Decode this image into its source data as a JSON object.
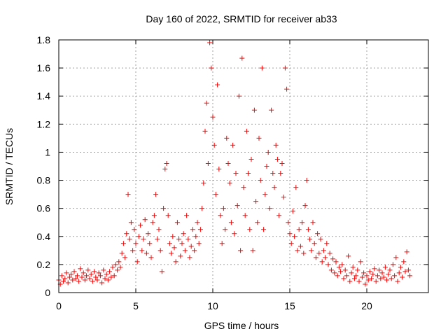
{
  "chart_data": {
    "type": "scatter",
    "title": "Day 160 of 2022, SRMTID for receiver ab33",
    "xlabel": "GPS time / hours",
    "ylabel": "SRMTID / TECUs",
    "xlim": [
      0,
      24
    ],
    "ylim": [
      0,
      1.8
    ],
    "xticks": [
      0,
      5,
      10,
      15,
      20
    ],
    "yticks": [
      0,
      0.2,
      0.4,
      0.6,
      0.8,
      1,
      1.2,
      1.4,
      1.6,
      1.8
    ],
    "ytick_labels": [
      "0",
      "0.2",
      "0.4",
      "0.6",
      "0.8",
      "1",
      "1.2",
      "1.4",
      "1.6",
      "1.8"
    ],
    "grid": true,
    "marker": "+",
    "color": "#ff0000",
    "series": [
      {
        "name": "SRMTID",
        "points": [
          [
            0.0,
            0.09
          ],
          [
            0.1,
            0.06
          ],
          [
            0.2,
            0.12
          ],
          [
            0.3,
            0.08
          ],
          [
            0.4,
            0.1
          ],
          [
            0.5,
            0.14
          ],
          [
            0.6,
            0.07
          ],
          [
            0.7,
            0.11
          ],
          [
            0.8,
            0.13
          ],
          [
            0.9,
            0.09
          ],
          [
            1.0,
            0.15
          ],
          [
            1.1,
            0.1
          ],
          [
            1.2,
            0.12
          ],
          [
            1.3,
            0.08
          ],
          [
            1.4,
            0.17
          ],
          [
            1.5,
            0.11
          ],
          [
            1.6,
            0.14
          ],
          [
            1.7,
            0.09
          ],
          [
            1.8,
            0.12
          ],
          [
            1.9,
            0.16
          ],
          [
            2.0,
            0.1
          ],
          [
            2.1,
            0.13
          ],
          [
            2.2,
            0.08
          ],
          [
            2.3,
            0.15
          ],
          [
            2.4,
            0.11
          ],
          [
            2.5,
            0.09
          ],
          [
            2.6,
            0.14
          ],
          [
            2.7,
            0.12
          ],
          [
            2.8,
            0.07
          ],
          [
            2.9,
            0.16
          ],
          [
            3.0,
            0.1
          ],
          [
            3.1,
            0.13
          ],
          [
            3.2,
            0.09
          ],
          [
            3.3,
            0.15
          ],
          [
            3.4,
            0.11
          ],
          [
            3.5,
            0.18
          ],
          [
            3.6,
            0.12
          ],
          [
            3.7,
            0.2
          ],
          [
            3.8,
            0.16
          ],
          [
            3.9,
            0.22
          ],
          [
            4.0,
            0.18
          ],
          [
            4.1,
            0.28
          ],
          [
            4.2,
            0.35
          ],
          [
            4.3,
            0.25
          ],
          [
            4.4,
            0.42
          ],
          [
            4.5,
            0.7
          ],
          [
            4.6,
            0.38
          ],
          [
            4.7,
            0.5
          ],
          [
            4.8,
            0.3
          ],
          [
            4.9,
            0.45
          ],
          [
            5.0,
            0.35
          ],
          [
            5.1,
            0.22
          ],
          [
            5.2,
            0.4
          ],
          [
            5.3,
            0.48
          ],
          [
            5.4,
            0.3
          ],
          [
            5.5,
            0.38
          ],
          [
            5.6,
            0.52
          ],
          [
            5.7,
            0.28
          ],
          [
            5.8,
            0.42
          ],
          [
            5.9,
            0.35
          ],
          [
            6.0,
            0.25
          ],
          [
            6.1,
            0.5
          ],
          [
            6.2,
            0.55
          ],
          [
            6.3,
            0.7
          ],
          [
            6.4,
            0.38
          ],
          [
            6.5,
            0.45
          ],
          [
            6.6,
            0.3
          ],
          [
            6.7,
            0.15
          ],
          [
            6.8,
            0.6
          ],
          [
            6.9,
            0.88
          ],
          [
            7.0,
            0.92
          ],
          [
            7.1,
            0.55
          ],
          [
            7.2,
            0.35
          ],
          [
            7.3,
            0.28
          ],
          [
            7.4,
            0.4
          ],
          [
            7.5,
            0.32
          ],
          [
            7.6,
            0.22
          ],
          [
            7.7,
            0.5
          ],
          [
            7.8,
            0.38
          ],
          [
            7.9,
            0.26
          ],
          [
            8.0,
            0.35
          ],
          [
            8.1,
            0.42
          ],
          [
            8.2,
            0.3
          ],
          [
            8.3,
            0.55
          ],
          [
            8.4,
            0.38
          ],
          [
            8.5,
            0.25
          ],
          [
            8.6,
            0.33
          ],
          [
            8.7,
            0.45
          ],
          [
            8.8,
            0.3
          ],
          [
            8.9,
            0.4
          ],
          [
            9.0,
            0.5
          ],
          [
            9.1,
            0.35
          ],
          [
            9.2,
            0.45
          ],
          [
            9.3,
            0.6
          ],
          [
            9.4,
            0.78
          ],
          [
            9.5,
            1.15
          ],
          [
            9.6,
            1.35
          ],
          [
            9.7,
            0.92
          ],
          [
            9.8,
            1.78
          ],
          [
            9.9,
            1.6
          ],
          [
            10.0,
            1.25
          ],
          [
            10.1,
            1.05
          ],
          [
            10.2,
            0.7
          ],
          [
            10.3,
            1.48
          ],
          [
            10.4,
            0.88
          ],
          [
            10.5,
            0.55
          ],
          [
            10.6,
            0.35
          ],
          [
            10.7,
            0.6
          ],
          [
            10.8,
            0.45
          ],
          [
            10.9,
            1.1
          ],
          [
            11.0,
            0.92
          ],
          [
            11.1,
            0.78
          ],
          [
            11.2,
            0.5
          ],
          [
            11.3,
            1.05
          ],
          [
            11.4,
            0.42
          ],
          [
            11.5,
            0.85
          ],
          [
            11.6,
            0.62
          ],
          [
            11.7,
            1.4
          ],
          [
            11.8,
            0.3
          ],
          [
            11.9,
            1.67
          ],
          [
            12.0,
            0.75
          ],
          [
            12.1,
            0.55
          ],
          [
            12.2,
            1.15
          ],
          [
            12.3,
            0.85
          ],
          [
            12.4,
            0.45
          ],
          [
            12.5,
            0.95
          ],
          [
            12.6,
            0.3
          ],
          [
            12.7,
            1.3
          ],
          [
            12.8,
            0.65
          ],
          [
            12.9,
            0.5
          ],
          [
            13.0,
            1.1
          ],
          [
            13.1,
            0.8
          ],
          [
            13.2,
            1.6
          ],
          [
            13.3,
            0.45
          ],
          [
            13.4,
            0.7
          ],
          [
            13.5,
            0.9
          ],
          [
            13.6,
            1.0
          ],
          [
            13.7,
            0.6
          ],
          [
            13.8,
            1.3
          ],
          [
            13.9,
            0.85
          ],
          [
            14.0,
            0.75
          ],
          [
            14.1,
            1.05
          ],
          [
            14.2,
            0.95
          ],
          [
            14.3,
            0.55
          ],
          [
            14.4,
            0.85
          ],
          [
            14.5,
            0.92
          ],
          [
            14.6,
            0.68
          ],
          [
            14.7,
            1.6
          ],
          [
            14.8,
            1.45
          ],
          [
            14.9,
            0.5
          ],
          [
            15.0,
            0.42
          ],
          [
            15.1,
            0.35
          ],
          [
            15.2,
            0.58
          ],
          [
            15.3,
            0.4
          ],
          [
            15.4,
            0.75
          ],
          [
            15.5,
            0.3
          ],
          [
            15.6,
            0.45
          ],
          [
            15.7,
            0.33
          ],
          [
            15.8,
            0.5
          ],
          [
            15.9,
            0.28
          ],
          [
            16.0,
            0.62
          ],
          [
            16.1,
            0.8
          ],
          [
            16.2,
            0.45
          ],
          [
            16.3,
            0.38
          ],
          [
            16.4,
            0.3
          ],
          [
            16.5,
            0.5
          ],
          [
            16.6,
            0.35
          ],
          [
            16.7,
            0.25
          ],
          [
            16.8,
            0.42
          ],
          [
            16.9,
            0.28
          ],
          [
            17.0,
            0.38
          ],
          [
            17.1,
            0.22
          ],
          [
            17.2,
            0.3
          ],
          [
            17.3,
            0.25
          ],
          [
            17.4,
            0.35
          ],
          [
            17.5,
            0.2
          ],
          [
            17.6,
            0.28
          ],
          [
            17.7,
            0.16
          ],
          [
            17.8,
            0.24
          ],
          [
            17.9,
            0.14
          ],
          [
            18.0,
            0.22
          ],
          [
            18.1,
            0.12
          ],
          [
            18.2,
            0.18
          ],
          [
            18.3,
            0.15
          ],
          [
            18.4,
            0.2
          ],
          [
            18.5,
            0.1
          ],
          [
            18.6,
            0.16
          ],
          [
            18.7,
            0.12
          ],
          [
            18.8,
            0.26
          ],
          [
            18.9,
            0.08
          ],
          [
            19.0,
            0.14
          ],
          [
            19.1,
            0.18
          ],
          [
            19.2,
            0.1
          ],
          [
            19.3,
            0.12
          ],
          [
            19.4,
            0.16
          ],
          [
            19.5,
            0.08
          ],
          [
            19.6,
            0.22
          ],
          [
            19.7,
            0.11
          ],
          [
            19.8,
            0.14
          ],
          [
            19.9,
            0.06
          ],
          [
            20.0,
            0.12
          ],
          [
            20.1,
            0.09
          ],
          [
            20.2,
            0.15
          ],
          [
            20.3,
            0.1
          ],
          [
            20.4,
            0.13
          ],
          [
            20.5,
            0.17
          ],
          [
            20.6,
            0.08
          ],
          [
            20.7,
            0.12
          ],
          [
            20.8,
            0.16
          ],
          [
            20.9,
            0.1
          ],
          [
            21.0,
            0.14
          ],
          [
            21.1,
            0.11
          ],
          [
            21.2,
            0.18
          ],
          [
            21.3,
            0.09
          ],
          [
            21.4,
            0.13
          ],
          [
            21.5,
            0.16
          ],
          [
            21.6,
            0.1
          ],
          [
            21.7,
            0.2
          ],
          [
            21.8,
            0.12
          ],
          [
            21.9,
            0.25
          ],
          [
            22.0,
            0.08
          ],
          [
            22.1,
            0.14
          ],
          [
            22.2,
            0.18
          ],
          [
            22.3,
            0.11
          ],
          [
            22.4,
            0.22
          ],
          [
            22.5,
            0.15
          ],
          [
            22.6,
            0.29
          ],
          [
            22.7,
            0.16
          ],
          [
            22.8,
            0.12
          ]
        ]
      }
    ]
  }
}
